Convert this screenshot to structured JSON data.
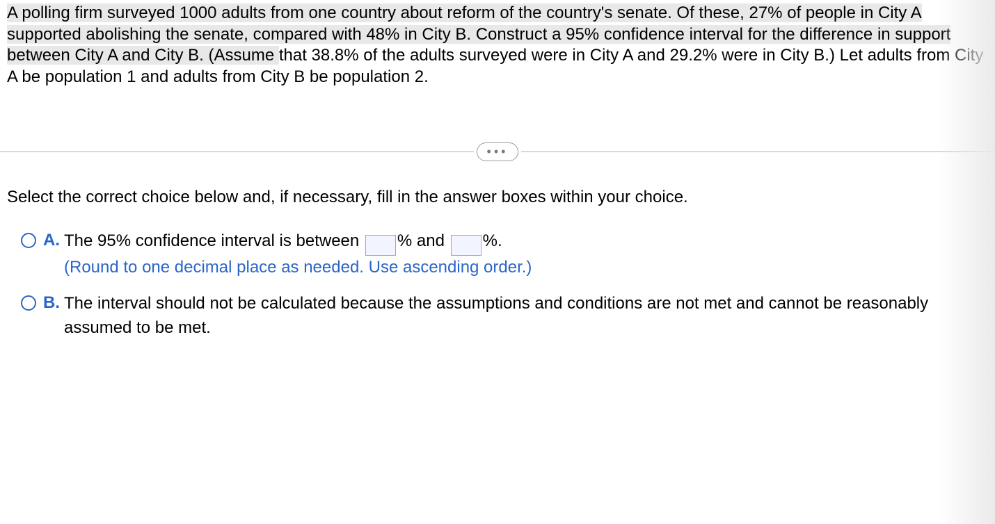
{
  "question": {
    "seg1": "A polling firm surveyed 1000 adults from one country about reform of the country's senate. Of these, ",
    "seg2": "27% of people in City A supported abolishing the senate, compared with ",
    "seg3": "48% in City B. Construct a ",
    "seg4": "95% confidence interval for the difference in support between City A and City B. (Assume ",
    "seg5": "that 38.8% of the adults surveyed were in City A and 29.2% were in City B.) Let adults from City A be population 1 and adults from City B be population 2."
  },
  "pill": "•••",
  "prompt": "Select the correct choice below and, if necessary, fill in the answer boxes within your choice.",
  "choices": {
    "A": {
      "letter": "A.",
      "t1": "The 95% confidence interval is between ",
      "t2": "% and ",
      "t3": "%.",
      "hint": "(Round to one decimal place as needed. Use ascending order.)"
    },
    "B": {
      "letter": "B.",
      "text": "The interval should not be calculated because the assumptions and conditions are not met and cannot be reasonably assumed to be met."
    }
  }
}
